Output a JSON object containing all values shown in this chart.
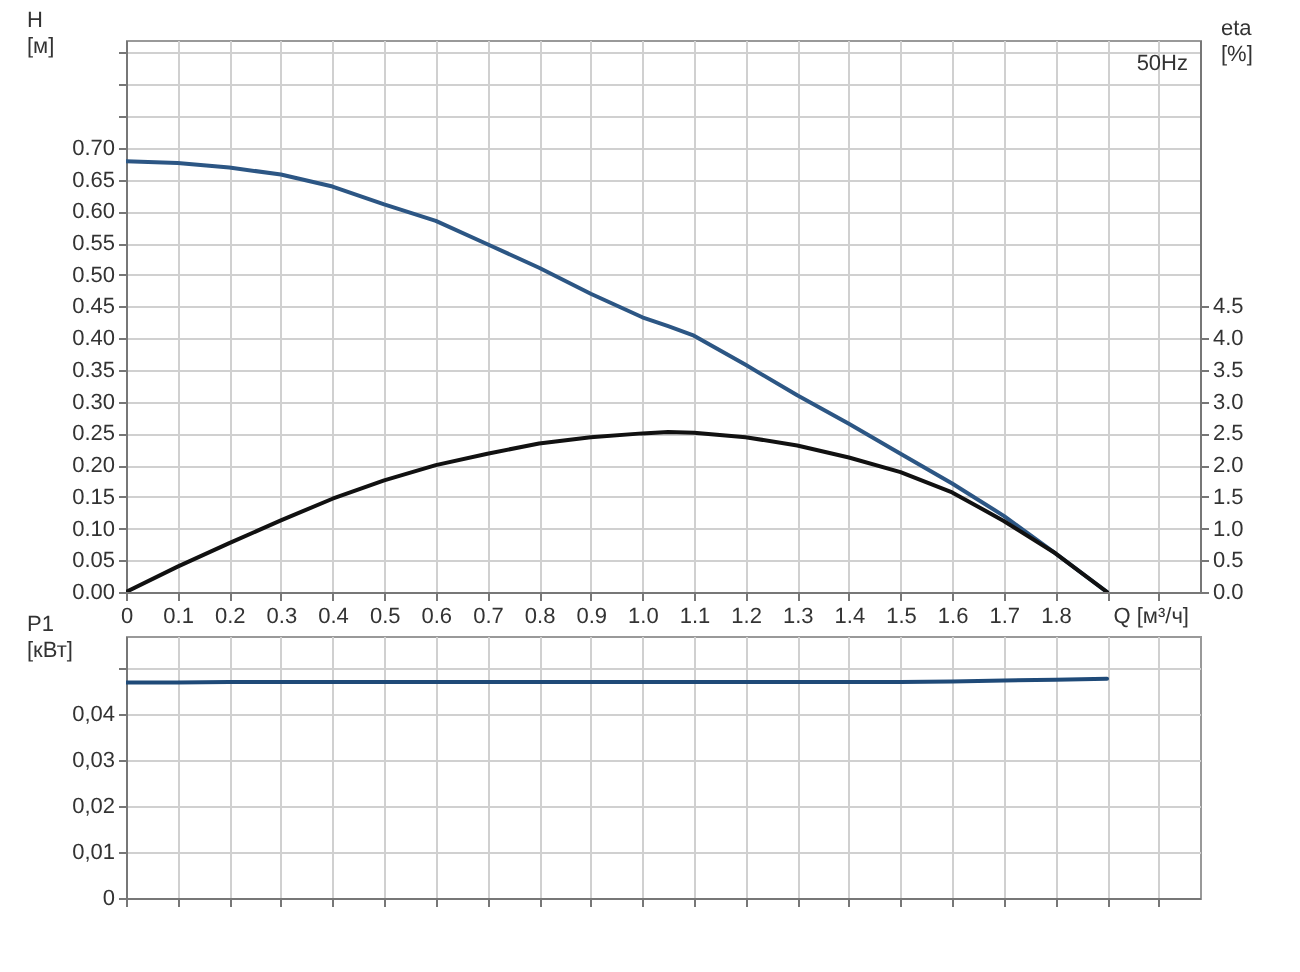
{
  "chart_data": [
    {
      "type": "line",
      "xlabel": "Q [м³/ч]",
      "ylabel": "H\n[м]",
      "y2label": "eta\n[%]",
      "annotations": [
        "50Hz"
      ],
      "x": [
        0,
        0.1,
        0.2,
        0.3,
        0.4,
        0.5,
        0.6,
        0.7,
        0.8,
        0.9,
        1.0,
        1.05,
        1.1,
        1.2,
        1.3,
        1.4,
        1.5,
        1.6,
        1.7,
        1.8,
        1.9
      ],
      "series": [
        {
          "color": "#2c5684",
          "values": [
            0.679,
            0.676,
            0.669,
            0.658,
            0.639,
            0.611,
            0.585,
            0.548,
            0.511,
            0.47,
            0.433,
            0.419,
            0.404,
            0.358,
            0.31,
            0.265,
            0.218,
            0.171,
            0.12,
            0.061,
            0
          ]
        },
        {
          "color": "#111111",
          "axis": "y2",
          "values": [
            0,
            0.4,
            0.77,
            1.13,
            1.47,
            1.76,
            2.0,
            2.18,
            2.34,
            2.44,
            2.5,
            2.52,
            2.51,
            2.44,
            2.31,
            2.12,
            1.89,
            1.57,
            1.12,
            0.61,
            0
          ]
        }
      ],
      "xlim": [
        0,
        2.08
      ],
      "xticks": [
        {
          "value": 0,
          "label": "0"
        },
        {
          "value": 0.1,
          "label": "0.1"
        },
        {
          "value": 0.2,
          "label": "0.2"
        },
        {
          "value": 0.3,
          "label": "0.3"
        },
        {
          "value": 0.4,
          "label": "0.4"
        },
        {
          "value": 0.5,
          "label": "0.5"
        },
        {
          "value": 0.6,
          "label": "0.6"
        },
        {
          "value": 0.7,
          "label": "0.7"
        },
        {
          "value": 0.8,
          "label": "0.8"
        },
        {
          "value": 0.9,
          "label": "0.9"
        },
        {
          "value": 1,
          "label": "1.0"
        },
        {
          "value": 1.1,
          "label": "1.1"
        },
        {
          "value": 1.2,
          "label": "1.2"
        },
        {
          "value": 1.3,
          "label": "1.3"
        },
        {
          "value": 1.4,
          "label": "1.4"
        },
        {
          "value": 1.5,
          "label": "1.5"
        },
        {
          "value": 1.6,
          "label": "1.6"
        },
        {
          "value": 1.7,
          "label": "1.7"
        },
        {
          "value": 1.8,
          "label": "1.8"
        },
        {
          "value": 1.9,
          "label": null
        },
        {
          "value": 2,
          "label": null
        }
      ],
      "ylim": [
        0,
        0.87
      ],
      "yticks": [
        {
          "value": 0,
          "label": "0.00"
        },
        {
          "value": 0.05,
          "label": "0.05"
        },
        {
          "value": 0.1,
          "label": "0.10"
        },
        {
          "value": 0.15,
          "label": "0.15"
        },
        {
          "value": 0.2,
          "label": "0.20"
        },
        {
          "value": 0.25,
          "label": "0.25"
        },
        {
          "value": 0.3,
          "label": "0.30"
        },
        {
          "value": 0.35,
          "label": "0.35"
        },
        {
          "value": 0.4,
          "label": "0.40"
        },
        {
          "value": 0.45,
          "label": "0.45"
        },
        {
          "value": 0.5,
          "label": "0.50"
        },
        {
          "value": 0.55,
          "label": "0.55"
        },
        {
          "value": 0.6,
          "label": "0.60"
        },
        {
          "value": 0.65,
          "label": "0.65"
        },
        {
          "value": 0.7,
          "label": "0.70"
        },
        {
          "value": 0.75,
          "label": null
        },
        {
          "value": 0.8,
          "label": null
        },
        {
          "value": 0.85,
          "label": null
        }
      ],
      "y2lim": [
        0,
        8.7
      ],
      "y2ticks": [
        {
          "value": 0,
          "label": "0.0"
        },
        {
          "value": 0.5,
          "label": "0.5"
        },
        {
          "value": 1,
          "label": "1.0"
        },
        {
          "value": 1.5,
          "label": "1.5"
        },
        {
          "value": 2,
          "label": "2.0"
        },
        {
          "value": 2.5,
          "label": "2.5"
        },
        {
          "value": 3,
          "label": "3.0"
        },
        {
          "value": 3.5,
          "label": "3.5"
        },
        {
          "value": 4,
          "label": "4.0"
        },
        {
          "value": 4.5,
          "label": "4.5"
        }
      ],
      "grid": true,
      "marker": "none",
      "line_style": "solid"
    },
    {
      "type": "line",
      "ylabel": "P1\n[кВт]",
      "x": [
        0,
        0.1,
        0.2,
        0.3,
        0.4,
        0.5,
        0.6,
        0.7,
        0.8,
        0.9,
        1.0,
        1.1,
        1.2,
        1.3,
        1.4,
        1.5,
        1.6,
        1.7,
        1.8,
        1.9
      ],
      "series": [
        {
          "color": "#1f4a78",
          "values": [
            0.0469,
            0.0469,
            0.047,
            0.047,
            0.047,
            0.047,
            0.047,
            0.047,
            0.047,
            0.047,
            0.047,
            0.047,
            0.047,
            0.047,
            0.047,
            0.047,
            0.0471,
            0.0473,
            0.0475,
            0.0477
          ]
        }
      ],
      "xlim": [
        0,
        2.08
      ],
      "xticks": [
        0,
        0.1,
        0.2,
        0.3,
        0.4,
        0.5,
        0.6,
        0.7,
        0.8,
        0.9,
        1,
        1.1,
        1.2,
        1.3,
        1.4,
        1.5,
        1.6,
        1.7,
        1.8,
        1.9,
        2
      ],
      "ylim": [
        0,
        0.057
      ],
      "yticks": [
        {
          "value": 0,
          "label": "0"
        },
        {
          "value": 0.01,
          "label": "0,01"
        },
        {
          "value": 0.02,
          "label": "0,02"
        },
        {
          "value": 0.03,
          "label": "0,03"
        },
        {
          "value": 0.04,
          "label": "0,04"
        },
        {
          "value": 0.05,
          "label": null
        }
      ],
      "tick_labels": "y",
      "grid": true,
      "marker": "none",
      "line_style": "solid"
    }
  ]
}
